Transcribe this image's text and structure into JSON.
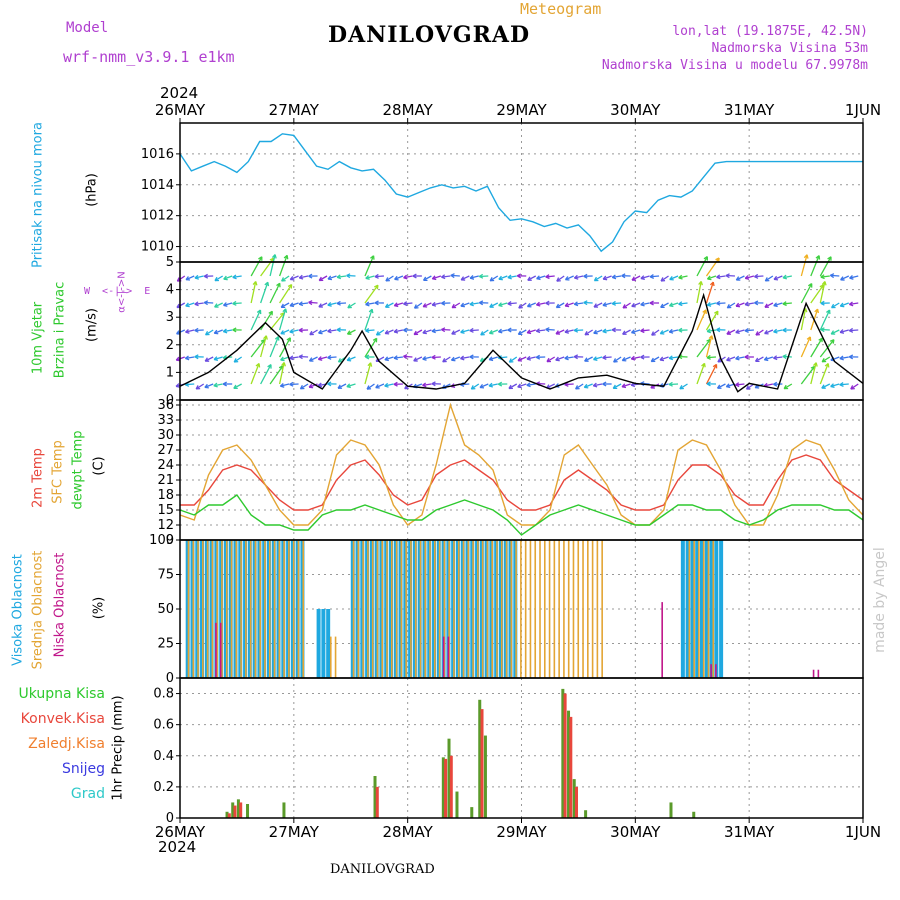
{
  "header": {
    "model_label": "Model",
    "model_value": "wrf-nmm_v3.9.1 e1km",
    "station": "DANILOVGRAD",
    "product": "Meteogram",
    "lonlat": "lon,lat (19.1875E, 42.5N)",
    "elevation": "Nadmorska Visina 53m",
    "model_elevation": "Nadmorska Visina u modelu 67.9978m",
    "watermark": "made by Angel",
    "footer_station": "DANILOVGRAD"
  },
  "time_axis": {
    "year": "2024",
    "ticks": [
      "26MAY",
      "27MAY",
      "28MAY",
      "29MAY",
      "30MAY",
      "31MAY",
      "1JUN"
    ]
  },
  "colors": {
    "pressure": "#1fa8e0",
    "temp2m": "#e8473c",
    "sfc": "#e3a534",
    "dewpt": "#2ec92e",
    "cloud_high": "#1fa8e0",
    "cloud_mid": "#e3a534",
    "cloud_low": "#c0168a",
    "precip_total": "#2ec92e",
    "precip_conv": "#e8473c",
    "precip_frozen": "#f07f2e",
    "snow": "#3a3ae0",
    "hail": "#2ec9c9",
    "wind_labels": "#b040d0"
  },
  "labels": {
    "pressure_title": "Pritisak na nivou mora",
    "pressure_unit": "(hPa)",
    "wind_title1": "10m Vjetar",
    "wind_title2": "Brzina i Pravac",
    "wind_unit": "(m/s)",
    "wind_dir_ns": "α<-|->N",
    "wind_dir_we": "W  <-|->  E",
    "temp_title1": "2m Temp",
    "temp_title2": "SFC Temp",
    "temp_title3": "dewpt Temp",
    "temp_unit": "(C)",
    "cloud_title1": "Visoka Oblacnost",
    "cloud_title2": "Srednja Oblacnost",
    "cloud_title3": "Niska Oblacnost",
    "cloud_unit": "(%)",
    "precip_title": "1hr Precip (mm)",
    "precip_total": "Ukupna Kisa",
    "precip_conv": "Konvek.Kisa",
    "precip_frozen": "Zaledj.Kisa",
    "snow": "Snijeg",
    "hail": "Grad"
  },
  "chart_data": [
    {
      "type": "line",
      "name": "pressure",
      "x_unit": "days since 26MAY 00UTC",
      "xlim": [
        0,
        6
      ],
      "ylim": [
        1009,
        1018
      ],
      "yticks": [
        1010,
        1012,
        1014,
        1016
      ],
      "x": [
        0,
        0.1,
        0.2,
        0.3,
        0.4,
        0.5,
        0.6,
        0.7,
        0.8,
        0.9,
        1.0,
        1.1,
        1.2,
        1.3,
        1.4,
        1.5,
        1.6,
        1.7,
        1.8,
        1.9,
        2.0,
        2.1,
        2.2,
        2.3,
        2.4,
        2.5,
        2.6,
        2.7,
        2.8,
        2.9,
        3.0,
        3.1,
        3.2,
        3.3,
        3.4,
        3.5,
        3.6,
        3.7,
        3.8,
        3.9,
        4.0,
        4.1,
        4.2,
        4.3,
        4.4,
        4.5,
        4.6,
        4.7,
        4.8,
        4.9,
        5.0,
        5.1,
        5.2,
        5.3,
        5.4,
        5.5,
        5.6,
        5.7,
        5.8,
        5.9,
        6.0
      ],
      "values": [
        1016,
        1014.9,
        1015.2,
        1015.5,
        1015.2,
        1014.8,
        1015.5,
        1016.8,
        1016.8,
        1017.3,
        1017.2,
        1016.2,
        1015.2,
        1015.0,
        1015.5,
        1015.1,
        1014.9,
        1015.0,
        1014.3,
        1013.4,
        1013.2,
        1013.5,
        1013.8,
        1014.0,
        1013.8,
        1013.9,
        1013.6,
        1013.9,
        1012.5,
        1011.7,
        1011.8,
        1011.6,
        1011.3,
        1011.5,
        1011.2,
        1011.4,
        1010.7,
        1009.7,
        1010.3,
        1011.6,
        1012.3,
        1012.2,
        1013.0,
        1013.3,
        1013.2,
        1013.6,
        1014.5,
        1015.4,
        1015.5,
        1015.5,
        1015.5,
        1015.5,
        1015.5,
        1015.5,
        1015.5,
        1015.5,
        1015.5,
        1015.5,
        1015.5,
        1015.5,
        1015.5
      ]
    },
    {
      "type": "line",
      "name": "wind",
      "ylim": [
        0,
        5
      ],
      "yticks": [
        0,
        1,
        2,
        3,
        4,
        5
      ],
      "x": [
        0,
        0.25,
        0.5,
        0.75,
        0.9,
        1.0,
        1.25,
        1.5,
        1.6,
        1.75,
        2.0,
        2.25,
        2.5,
        2.75,
        2.9,
        3.0,
        3.25,
        3.5,
        3.75,
        4.0,
        4.25,
        4.5,
        4.6,
        4.75,
        4.9,
        5.0,
        5.25,
        5.5,
        5.75,
        6.0
      ],
      "values": [
        0.5,
        1.0,
        1.8,
        2.8,
        2.2,
        1.0,
        0.4,
        1.8,
        2.5,
        1.4,
        0.5,
        0.4,
        0.6,
        1.8,
        1.2,
        0.8,
        0.4,
        0.8,
        0.9,
        0.6,
        0.5,
        2.5,
        3.8,
        1.5,
        0.3,
        0.6,
        0.4,
        3.5,
        1.4,
        0.6
      ]
    },
    {
      "type": "line",
      "name": "temperature",
      "ylim": [
        9,
        37
      ],
      "yticks": [
        9,
        12,
        15,
        18,
        21,
        24,
        27,
        30,
        33,
        36
      ],
      "x": [
        0,
        0.125,
        0.25,
        0.375,
        0.5,
        0.625,
        0.75,
        0.875,
        1.0,
        1.125,
        1.25,
        1.375,
        1.5,
        1.625,
        1.75,
        1.875,
        2.0,
        2.125,
        2.25,
        2.375,
        2.5,
        2.625,
        2.75,
        2.875,
        3.0,
        3.125,
        3.25,
        3.375,
        3.5,
        3.625,
        3.75,
        3.875,
        4.0,
        4.125,
        4.25,
        4.375,
        4.5,
        4.625,
        4.75,
        4.875,
        5.0,
        5.125,
        5.25,
        5.375,
        5.5,
        5.625,
        5.75,
        5.875,
        6.0
      ],
      "series": [
        {
          "name": "2m Temp",
          "values": [
            16,
            16,
            19,
            23,
            24,
            23,
            20,
            17,
            15,
            15,
            16,
            21,
            24,
            25,
            22,
            18,
            16,
            17,
            22,
            24,
            25,
            23,
            21,
            17,
            15,
            15,
            16,
            21,
            23,
            21,
            19,
            16,
            15,
            15,
            16,
            21,
            24,
            24,
            22,
            18,
            16,
            16,
            21,
            25,
            26,
            25,
            21,
            19,
            17
          ]
        },
        {
          "name": "SFC Temp",
          "values": [
            14,
            13,
            22,
            27,
            28,
            25,
            20,
            15,
            12,
            12,
            15,
            26,
            29,
            28,
            24,
            16,
            12,
            14,
            24,
            36,
            28,
            26,
            23,
            14,
            12,
            12,
            15,
            26,
            28,
            24,
            20,
            14,
            12,
            12,
            15,
            27,
            29,
            28,
            23,
            16,
            12,
            12,
            18,
            27,
            29,
            28,
            23,
            17,
            14
          ]
        },
        {
          "name": "dewpt Temp",
          "values": [
            15,
            14,
            16,
            16,
            18,
            14,
            12,
            12,
            11,
            11,
            14,
            15,
            15,
            16,
            15,
            14,
            13,
            13,
            15,
            16,
            17,
            16,
            15,
            13,
            10,
            12,
            14,
            15,
            16,
            15,
            14,
            13,
            12,
            12,
            14,
            16,
            16,
            15,
            15,
            13,
            12,
            13,
            15,
            16,
            16,
            16,
            15,
            15,
            13
          ]
        }
      ]
    },
    {
      "type": "bar",
      "name": "cloud",
      "ylim": [
        0,
        100
      ],
      "yticks": [
        0,
        25,
        50,
        75,
        100
      ],
      "series": [
        {
          "name": "Visoka Oblacnost",
          "segments": [
            [
              0.05,
              1.07,
              100
            ],
            [
              1.2,
              1.3,
              50
            ],
            [
              1.5,
              2.95,
              100
            ],
            [
              4.4,
              4.75,
              100
            ]
          ]
        },
        {
          "name": "Srednja Oblacnost",
          "segments": [
            [
              0.05,
              1.07,
              100
            ],
            [
              1.3,
              1.35,
              30
            ],
            [
              1.5,
              3.7,
              100
            ],
            [
              4.45,
              4.7,
              100
            ]
          ]
        },
        {
          "name": "Niska Oblacnost",
          "segments": [
            [
              0.3,
              0.35,
              40
            ],
            [
              2.3,
              2.35,
              30
            ],
            [
              4.22,
              4.25,
              55
            ],
            [
              4.65,
              4.7,
              10
            ],
            [
              5.55,
              5.6,
              6
            ]
          ]
        }
      ]
    },
    {
      "type": "bar",
      "name": "precip",
      "ylim": [
        0,
        0.9
      ],
      "yticks": [
        0,
        0.2,
        0.4,
        0.6,
        0.8
      ],
      "series": [
        {
          "name": "Ukupna Kisa",
          "x": [
            0.4,
            0.45,
            0.5,
            0.58,
            0.9,
            1.7,
            2.3,
            2.35,
            2.42,
            2.55,
            2.62,
            2.67,
            3.35,
            3.4,
            3.45,
            3.55,
            4.3,
            4.5
          ],
          "values": [
            0.04,
            0.1,
            0.12,
            0.09,
            0.1,
            0.27,
            0.39,
            0.51,
            0.17,
            0.07,
            0.76,
            0.53,
            0.83,
            0.69,
            0.25,
            0.05,
            0.1,
            0.04
          ]
        },
        {
          "name": "Konvek.Kisa",
          "x": [
            0.42,
            0.47,
            0.52,
            1.72,
            2.32,
            2.37,
            2.64,
            3.37,
            3.42,
            3.47
          ],
          "values": [
            0.03,
            0.08,
            0.1,
            0.2,
            0.38,
            0.4,
            0.7,
            0.8,
            0.65,
            0.2
          ]
        }
      ]
    }
  ]
}
